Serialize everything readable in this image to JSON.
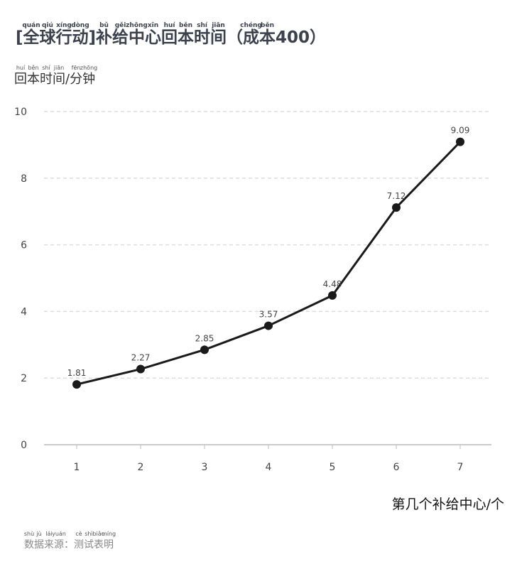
{
  "chart_data": {
    "type": "line",
    "title": "[全球行动]补给中心回本时间（成本400）",
    "title_pinyin": [
      "quán",
      "qiú",
      "xíng",
      "dòng",
      "bǔ",
      "gěi",
      "zhōng",
      "xīn",
      "huí",
      "běn",
      "shí",
      "jiān",
      "chéng",
      "běn"
    ],
    "y_label": "回本时间/分钟",
    "y_label_pinyin": [
      "huí",
      "běn",
      "shí",
      "jiān",
      "fēn",
      "zhōng"
    ],
    "x_label": "第几个补给中心/个",
    "source": "数据来源：测试表明",
    "source_pinyin": [
      "shù",
      "jù",
      "lái",
      "yuán",
      "cè",
      "shì",
      "biǎo",
      "míng"
    ],
    "categories": [
      "1",
      "2",
      "3",
      "4",
      "5",
      "6",
      "7"
    ],
    "values": [
      1.81,
      2.27,
      2.85,
      3.57,
      4.48,
      7.12,
      9.09
    ],
    "color": "#1a1a1a",
    "ylim": [
      0,
      10
    ],
    "yticks": [
      0,
      2,
      4,
      6,
      8,
      10
    ],
    "grid": true
  }
}
